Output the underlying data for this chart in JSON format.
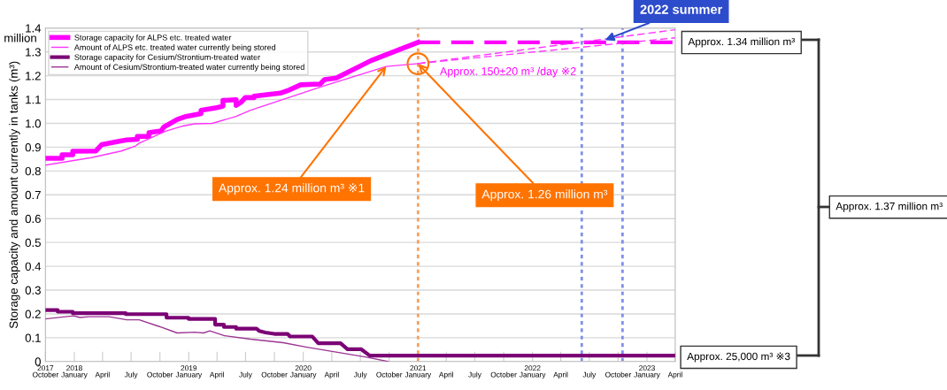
{
  "chart_data": {
    "type": "line",
    "ylabel": "Storage capacity and amount currently in tanks (m³)",
    "xlim": [
      "2017-10-01",
      "2023-04-01"
    ],
    "xticks": [
      {
        "value": "2017-10-01",
        "label": "2017\nOctober"
      },
      {
        "value": "2018-01-01",
        "label": "2018\nJanuary"
      },
      {
        "value": "2018-04-01",
        "label": "April"
      },
      {
        "value": "2018-07-01",
        "label": "July"
      },
      {
        "value": "2018-10-01",
        "label": "October"
      },
      {
        "value": "2019-01-01",
        "label": "2019\nJanuary"
      },
      {
        "value": "2019-04-01",
        "label": "April"
      },
      {
        "value": "2019-07-01",
        "label": "July"
      },
      {
        "value": "2019-10-01",
        "label": "October"
      },
      {
        "value": "2020-01-01",
        "label": "2020\nJanuary"
      },
      {
        "value": "2020-04-01",
        "label": "April"
      },
      {
        "value": "2020-07-01",
        "label": "July"
      },
      {
        "value": "2020-10-01",
        "label": "October"
      },
      {
        "value": "2021-01-01",
        "label": "2021\nJanuary"
      },
      {
        "value": "2021-04-01",
        "label": "April"
      },
      {
        "value": "2021-07-01",
        "label": "July"
      },
      {
        "value": "2021-10-01",
        "label": "October"
      },
      {
        "value": "2022-01-01",
        "label": "2022\nJanuary"
      },
      {
        "value": "2022-04-01",
        "label": "April"
      },
      {
        "value": "2022-07-01",
        "label": "July"
      },
      {
        "value": "2022-10-01",
        "label": "October"
      },
      {
        "value": "2023-01-01",
        "label": "2023\nJanuary"
      },
      {
        "value": "2023-04-01",
        "label": "April"
      }
    ],
    "ylim": [
      0,
      1.4
    ],
    "yticks": [
      0,
      0.1,
      0.2,
      0.3,
      0.4,
      0.5,
      0.6,
      0.7,
      0.8,
      0.9,
      {
        "value": 1.0,
        "label": "1.0"
      },
      1.1,
      1.2,
      1.3,
      1.4
    ],
    "grid": "y",
    "legend": "top left",
    "series": [
      {
        "name": "Storage capacity for ALPS etc. treated water",
        "color": "#ff00ff",
        "x": [
          "2017-10-01",
          "2017-11-23",
          "2017-11-23",
          "2017-12-27",
          "2017-12-27",
          "2018-03-11",
          "2018-03-30",
          "2018-05-20",
          "2018-06-17",
          "2018-07-21",
          "2018-07-21",
          "2018-08-27",
          "2018-08-27",
          "2018-10-05",
          "2018-10-13",
          "2018-11-25",
          "2018-12-23",
          "2019-02-09",
          "2019-02-09",
          "2019-03-31",
          "2019-04-20",
          "2019-04-20",
          "2019-06-01",
          "2019-06-01",
          "2019-06-16",
          "2019-06-30",
          "2019-07-28",
          "2019-07-28",
          "2019-10-20",
          "2019-11-17",
          "2019-12-24",
          "2020-02-24",
          "2020-03-09",
          "2020-04-15",
          "2020-08-05",
          "2021-01-01"
        ],
        "values": [
          0.853,
          0.853,
          0.868,
          0.868,
          0.883,
          0.884,
          0.911,
          0.924,
          0.93,
          0.933,
          0.945,
          0.945,
          0.961,
          0.968,
          0.984,
          1.016,
          1.029,
          1.041,
          1.055,
          1.066,
          1.072,
          1.096,
          1.099,
          1.075,
          1.088,
          1.108,
          1.108,
          1.114,
          1.127,
          1.14,
          1.162,
          1.165,
          1.184,
          1.19,
          1.264,
          1.34
        ]
      },
      {
        "name": "Amount of ALPS etc. treated water currently being stored",
        "color": "#ff33ff",
        "x": [
          "2017-10-01",
          "2018-02-24",
          "2018-05-31",
          "2018-07-15",
          "2018-07-27",
          "2018-10-19",
          "2018-12-14",
          "2019-01-20",
          "2019-03-17",
          "2019-06-01",
          "2019-07-17",
          "2020-03-09",
          "2020-09-22",
          "2021-01-01"
        ],
        "values": [
          0.825,
          0.856,
          0.884,
          0.905,
          0.917,
          0.967,
          0.989,
          0.998,
          1.0,
          1.029,
          1.055,
          1.158,
          1.239,
          1.251
        ]
      },
      {
        "name": "Storage capacity for Cesium/Strontium-treated water",
        "color": "#7b0075",
        "x": [
          "2017-10-01",
          "2017-11-09",
          "2017-11-09",
          "2017-12-27",
          "2017-12-27",
          "2018-06-14",
          "2018-06-14",
          "2018-10-22",
          "2018-10-22",
          "2018-12-31",
          "2018-12-31",
          "2019-03-26",
          "2019-03-26",
          "2019-04-23",
          "2019-04-23",
          "2019-06-01",
          "2019-06-01",
          "2019-08-05",
          "2019-08-14",
          "2019-09-02",
          "2019-10-01",
          "2019-11-12",
          "2019-11-20",
          "2020-01-30",
          "2020-02-18",
          "2020-04-29",
          "2020-05-21",
          "2020-07-03",
          "2020-07-31",
          "2023-04-01"
        ],
        "values": [
          0.216,
          0.216,
          0.209,
          0.209,
          0.203,
          0.203,
          0.199,
          0.199,
          0.184,
          0.184,
          0.179,
          0.179,
          0.155,
          0.155,
          0.145,
          0.145,
          0.138,
          0.138,
          0.128,
          0.122,
          0.116,
          0.116,
          0.105,
          0.105,
          0.077,
          0.077,
          0.052,
          0.052,
          0.025,
          0.025
        ]
      },
      {
        "name": "Amount of Cesium/Strontium-treated water currently being stored",
        "color": "#9b3593",
        "x": [
          "2017-10-01",
          "2017-12-30",
          "2018-01-19",
          "2018-02-16",
          "2018-04-22",
          "2018-06-17",
          "2018-07-27",
          "2018-09-29",
          "2018-11-25",
          "2019-01-20",
          "2019-02-17",
          "2019-03-09",
          "2019-04-23",
          "2019-07-17",
          "2019-10-29",
          "2020-01-13",
          "2020-07-17",
          "2020-09-28"
        ],
        "values": [
          0.179,
          0.192,
          0.185,
          0.188,
          0.188,
          0.175,
          0.175,
          0.147,
          0.12,
          0.123,
          0.12,
          0.129,
          0.109,
          0.094,
          0.079,
          0.06,
          0.019,
          0.0
        ]
      },
      {
        "color": "#ff00ff",
        "line_style": "dashed",
        "x": [
          "2021-01-01",
          "2023-04-01"
        ],
        "values": [
          1.34,
          1.34
        ]
      },
      {
        "color": "#ff33ff",
        "line_style": "dashed",
        "x": [
          "2021-01-01",
          "2023-04-01"
        ],
        "values": [
          1.251,
          1.393
        ]
      },
      {
        "color": "#ff33ff",
        "line_style": "dashed",
        "x": [
          "2021-01-01",
          "2023-04-01"
        ],
        "values": [
          1.251,
          1.359
        ]
      }
    ],
    "ref_lines": [
      {
        "axis": "x",
        "value": "2021-01-01",
        "color": "#f8a05c",
        "line_style": "dotted"
      },
      {
        "axis": "x",
        "value": "2022-06-07",
        "color": "#8090ea",
        "line_style": "dotted"
      },
      {
        "axis": "x",
        "value": "2022-10-15",
        "color": "#8090ea",
        "line_style": "dotted"
      }
    ],
    "annotations": [
      {
        "text": "2022 summer",
        "x": "2022-08-20",
        "y": 1.35
      },
      {
        "text": "Approx. 1.24 million m³ ※1",
        "x": "2020-09-22",
        "y": 1.24
      },
      {
        "text": "Approx. 1.26 million m³",
        "x": "2021-01-01",
        "y": 1.25
      },
      "Approx. 150±20 m³ /day ※2",
      "million",
      "Approx. 1.34 million m³",
      "Approx. 1.37 million m³",
      "Approx. 25,000 m³ ※3"
    ]
  }
}
